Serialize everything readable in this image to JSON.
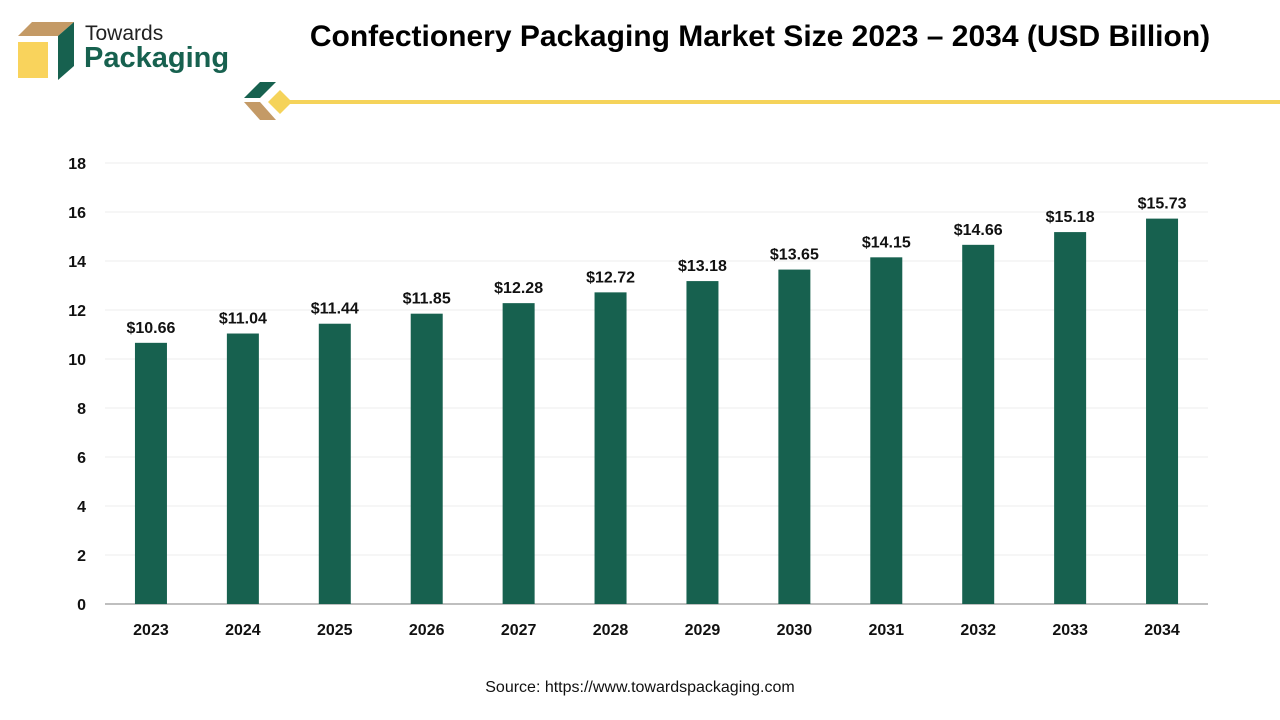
{
  "logo": {
    "line1": "Towards",
    "line2": "Packaging"
  },
  "title": "Confectionery Packaging Market Size 2023 – 2034 (USD Billion)",
  "source": "Source: https://www.towardspackaging.com",
  "colors": {
    "bar": "#17614f",
    "accent_yellow": "#f5d35a",
    "accent_tan": "#c49a66"
  },
  "chart_data": {
    "type": "bar",
    "title": "Confectionery Packaging Market Size 2023 – 2034 (USD Billion)",
    "categories": [
      "2023",
      "2024",
      "2025",
      "2026",
      "2027",
      "2028",
      "2029",
      "2030",
      "2031",
      "2032",
      "2033",
      "2034"
    ],
    "values": [
      10.66,
      11.04,
      11.44,
      11.85,
      12.28,
      12.72,
      13.18,
      13.65,
      14.15,
      14.66,
      15.18,
      15.73
    ],
    "labels": [
      "$10.66",
      "$11.04",
      "$11.44",
      "$11.85",
      "$12.28",
      "$12.72",
      "$13.18",
      "$13.65",
      "$14.15",
      "$14.66",
      "$15.18",
      "$15.73"
    ],
    "ylim": [
      0,
      18
    ],
    "yticks": [
      0,
      2,
      4,
      6,
      8,
      10,
      12,
      14,
      16,
      18
    ],
    "grid": true,
    "xlabel": "",
    "ylabel": ""
  }
}
